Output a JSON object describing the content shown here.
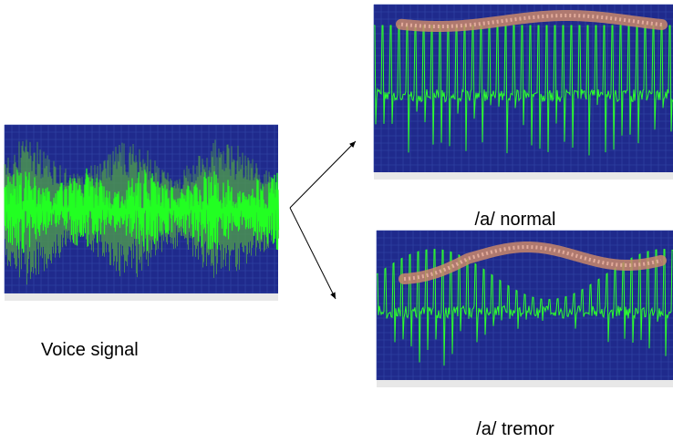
{
  "labels": {
    "voice": "Voice signal",
    "normal": "/a/ normal",
    "tremor": "/a/ tremor"
  }
}
